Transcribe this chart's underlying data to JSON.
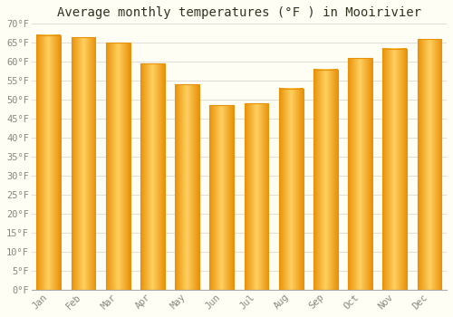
{
  "title": "Average monthly temperatures (°F ) in Mooirivier",
  "months": [
    "Jan",
    "Feb",
    "Mar",
    "Apr",
    "May",
    "Jun",
    "Jul",
    "Aug",
    "Sep",
    "Oct",
    "Nov",
    "Dec"
  ],
  "values": [
    67.0,
    66.5,
    65.0,
    59.5,
    54.0,
    48.5,
    49.0,
    53.0,
    58.0,
    61.0,
    63.5,
    66.0
  ],
  "bar_color_edge": "#E8920A",
  "bar_color_center": "#FFD060",
  "ylim": [
    0,
    70
  ],
  "yticks": [
    0,
    5,
    10,
    15,
    20,
    25,
    30,
    35,
    40,
    45,
    50,
    55,
    60,
    65,
    70
  ],
  "ytick_labels": [
    "0°F",
    "5°F",
    "10°F",
    "15°F",
    "20°F",
    "25°F",
    "30°F",
    "35°F",
    "40°F",
    "45°F",
    "50°F",
    "55°F",
    "60°F",
    "65°F",
    "70°F"
  ],
  "background_color": "#FEFEF5",
  "grid_color": "#E0E0D8",
  "title_fontsize": 10,
  "tick_fontsize": 7.5,
  "bar_width": 0.7,
  "n_gradient_steps": 50
}
